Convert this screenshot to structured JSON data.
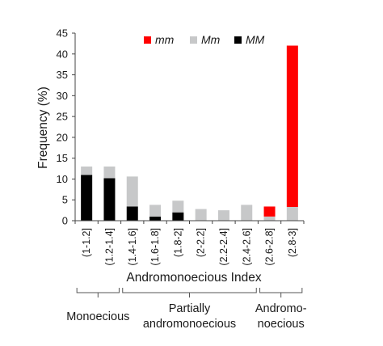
{
  "chart_data": {
    "type": "bar",
    "stacked": true,
    "categories": [
      "(1-1.2]",
      "(1.2-1.4]",
      "(1.4-1.6]",
      "(1.6-1.8]",
      "(1.8-2]",
      "(2-2.2]",
      "(2.2-2.4]",
      "(2.4-2.6]",
      "(2.6-2.8]",
      "(2.8-3]"
    ],
    "series": [
      {
        "name": "MM",
        "color": "#000000",
        "values": [
          11,
          10.2,
          3.4,
          1,
          2,
          0,
          0,
          0,
          0,
          0
        ]
      },
      {
        "name": "Mm",
        "color": "#c7c8c9",
        "values": [
          2,
          2.8,
          7.2,
          2.8,
          2.8,
          2.8,
          2.5,
          3.8,
          1,
          3.3
        ]
      },
      {
        "name": "mm",
        "color": "#ff0000",
        "values": [
          0,
          0,
          0,
          0,
          0,
          0,
          0,
          0,
          2.4,
          38.7
        ]
      }
    ],
    "legend_order": [
      "mm",
      "Mm",
      "MM"
    ],
    "legend_position": "top",
    "xlabel": "Andromonoecious Index",
    "ylabel": "Frequency (%)",
    "ylim": [
      0,
      45
    ],
    "yticks": [
      0,
      5,
      10,
      15,
      20,
      25,
      30,
      35,
      40,
      45
    ],
    "grid": false,
    "groups": [
      {
        "label_lines": [
          "Monoecious"
        ],
        "from": 0,
        "to": 1
      },
      {
        "label_lines": [
          "Partially",
          "andromonoecious"
        ],
        "from": 2,
        "to": 7
      },
      {
        "label_lines": [
          "Andromo-",
          "noecious"
        ],
        "from": 8,
        "to": 9
      }
    ]
  }
}
